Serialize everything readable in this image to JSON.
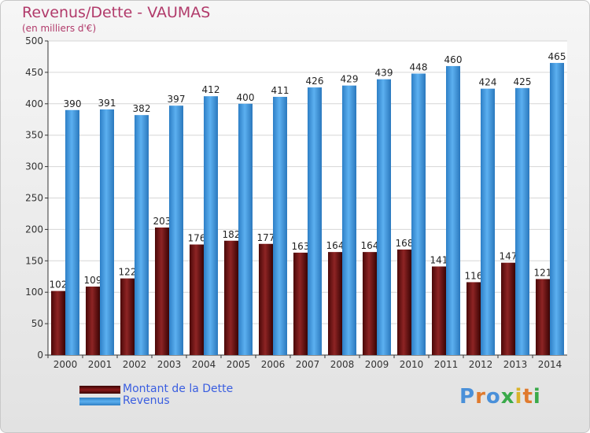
{
  "chart_data": {
    "type": "bar",
    "title": "Revenus/Dette - VAUMAS",
    "subtitle": "(en milliers d'€)",
    "categories": [
      "2000",
      "2001",
      "2002",
      "2003",
      "2004",
      "2005",
      "2006",
      "2007",
      "2008",
      "2009",
      "2010",
      "2011",
      "2012",
      "2013",
      "2014"
    ],
    "series": [
      {
        "name": "Montant de la Dette",
        "color": "#8b1a1a",
        "values": [
          102,
          109,
          122,
          203,
          176,
          182,
          177,
          163,
          164,
          164,
          168,
          141,
          116,
          147,
          121
        ]
      },
      {
        "name": "Revenus",
        "color": "#4da3e8",
        "values": [
          390,
          391,
          382,
          397,
          412,
          400,
          411,
          426,
          429,
          439,
          448,
          460,
          424,
          425,
          465
        ]
      }
    ],
    "ylim": [
      0,
      500
    ],
    "yticks": [
      0,
      50,
      100,
      150,
      200,
      250,
      300,
      350,
      400,
      450,
      500
    ],
    "grid": true,
    "legend_position": "bottom-left"
  },
  "branding": {
    "logo_text": "Proxiti"
  }
}
